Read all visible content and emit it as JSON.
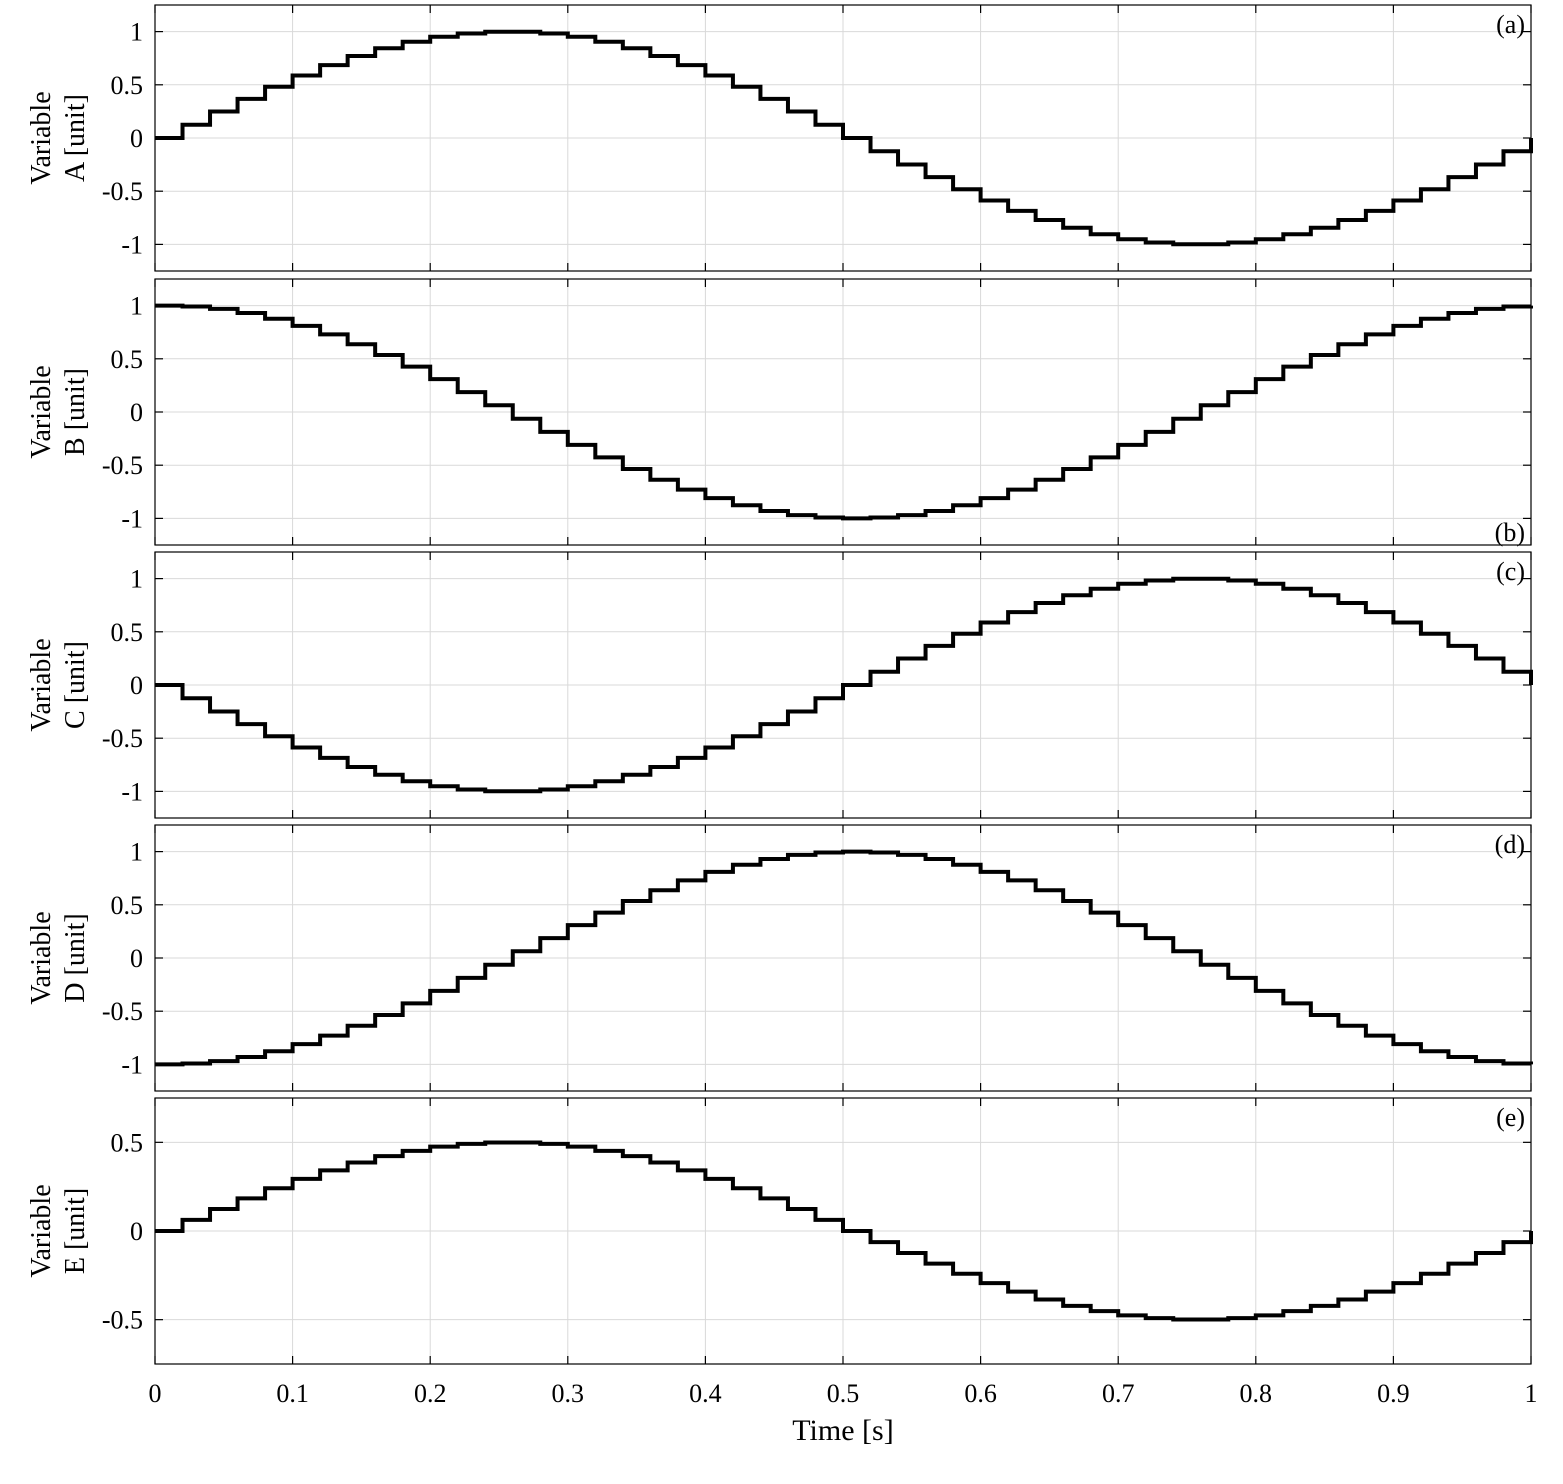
{
  "chart_data": {
    "type": "line",
    "step": true,
    "xlabel": "Time [s]",
    "xlim": [
      0,
      1
    ],
    "xticks": [
      0,
      0.1,
      0.2,
      0.3,
      0.4,
      0.5,
      0.6,
      0.7,
      0.8,
      0.9,
      1
    ],
    "xtick_labels": [
      "0",
      "0.1",
      "0.2",
      "0.3",
      "0.4",
      "0.5",
      "0.6",
      "0.7",
      "0.8",
      "0.9",
      "1"
    ],
    "grid": true,
    "sample_step": 0.02,
    "panels": [
      {
        "tag": "(a)",
        "tag_position": "top-right",
        "ylabel_line1": "Variable",
        "ylabel_line2": "A [unit]",
        "ylim": [
          -1.25,
          1.25
        ],
        "yticks": [
          1,
          0.5,
          0,
          -0.5,
          -1
        ],
        "ytick_labels": [
          "1",
          "0.5",
          "0",
          "-0.5",
          "-1"
        ],
        "values": [
          0.0,
          0.125,
          0.249,
          0.368,
          0.482,
          0.588,
          0.685,
          0.771,
          0.844,
          0.905,
          0.951,
          0.982,
          0.998,
          0.998,
          0.982,
          0.951,
          0.905,
          0.844,
          0.771,
          0.685,
          0.588,
          0.482,
          0.368,
          0.249,
          0.125,
          0.0,
          -0.125,
          -0.249,
          -0.368,
          -0.482,
          -0.588,
          -0.685,
          -0.771,
          -0.844,
          -0.905,
          -0.951,
          -0.982,
          -0.998,
          -0.998,
          -0.982,
          -0.951,
          -0.905,
          -0.844,
          -0.771,
          -0.685,
          -0.588,
          -0.482,
          -0.368,
          -0.249,
          -0.125,
          0.0
        ]
      },
      {
        "tag": "(b)",
        "tag_position": "bottom-right",
        "ylabel_line1": "Variable",
        "ylabel_line2": "B [unit]",
        "ylim": [
          -1.25,
          1.25
        ],
        "yticks": [
          1,
          0.5,
          0,
          -0.5,
          -1
        ],
        "ytick_labels": [
          "1",
          "0.5",
          "0",
          "-0.5",
          "-1"
        ],
        "values": [
          1.0,
          0.992,
          0.969,
          0.93,
          0.876,
          0.809,
          0.729,
          0.637,
          0.536,
          0.426,
          0.309,
          0.187,
          0.063,
          -0.063,
          -0.187,
          -0.309,
          -0.426,
          -0.536,
          -0.637,
          -0.729,
          -0.809,
          -0.876,
          -0.93,
          -0.969,
          -0.992,
          -1.0,
          -0.992,
          -0.969,
          -0.93,
          -0.876,
          -0.809,
          -0.729,
          -0.637,
          -0.536,
          -0.426,
          -0.309,
          -0.187,
          -0.063,
          0.063,
          0.187,
          0.309,
          0.426,
          0.536,
          0.637,
          0.729,
          0.809,
          0.876,
          0.93,
          0.969,
          0.992,
          1.0
        ]
      },
      {
        "tag": "(c)",
        "tag_position": "top-right",
        "ylabel_line1": "Variable",
        "ylabel_line2": "C [unit]",
        "ylim": [
          -1.25,
          1.25
        ],
        "yticks": [
          1,
          0.5,
          0,
          -0.5,
          -1
        ],
        "ytick_labels": [
          "1",
          "0.5",
          "0",
          "-0.5",
          "-1"
        ],
        "values": [
          0.0,
          -0.125,
          -0.249,
          -0.368,
          -0.482,
          -0.588,
          -0.685,
          -0.771,
          -0.844,
          -0.905,
          -0.951,
          -0.982,
          -0.998,
          -0.998,
          -0.982,
          -0.951,
          -0.905,
          -0.844,
          -0.771,
          -0.685,
          -0.588,
          -0.482,
          -0.368,
          -0.249,
          -0.125,
          0.0,
          0.125,
          0.249,
          0.368,
          0.482,
          0.588,
          0.685,
          0.771,
          0.844,
          0.905,
          0.951,
          0.982,
          0.998,
          0.998,
          0.982,
          0.951,
          0.905,
          0.844,
          0.771,
          0.685,
          0.588,
          0.482,
          0.368,
          0.249,
          0.125,
          0.0
        ]
      },
      {
        "tag": "(d)",
        "tag_position": "top-right",
        "ylabel_line1": "Variable",
        "ylabel_line2": "D [unit]",
        "ylim": [
          -1.25,
          1.25
        ],
        "yticks": [
          1,
          0.5,
          0,
          -0.5,
          -1
        ],
        "ytick_labels": [
          "1",
          "0.5",
          "0",
          "-0.5",
          "-1"
        ],
        "values": [
          -1.0,
          -0.992,
          -0.969,
          -0.93,
          -0.876,
          -0.809,
          -0.729,
          -0.637,
          -0.536,
          -0.426,
          -0.309,
          -0.187,
          -0.063,
          0.063,
          0.187,
          0.309,
          0.426,
          0.536,
          0.637,
          0.729,
          0.809,
          0.876,
          0.93,
          0.969,
          0.992,
          1.0,
          0.992,
          0.969,
          0.93,
          0.876,
          0.809,
          0.729,
          0.637,
          0.536,
          0.426,
          0.309,
          0.187,
          0.063,
          -0.063,
          -0.187,
          -0.309,
          -0.426,
          -0.536,
          -0.637,
          -0.729,
          -0.809,
          -0.876,
          -0.93,
          -0.969,
          -0.992,
          -1.0
        ]
      },
      {
        "tag": "(e)",
        "tag_position": "top-right",
        "ylabel_line1": "Variable",
        "ylabel_line2": "E [unit]",
        "ylim": [
          -0.75,
          0.75
        ],
        "yticks": [
          0.5,
          0,
          -0.5
        ],
        "ytick_labels": [
          "0.5",
          "0",
          "-0.5"
        ],
        "values": [
          0.0,
          0.063,
          0.124,
          0.184,
          0.241,
          0.294,
          0.342,
          0.386,
          0.422,
          0.452,
          0.476,
          0.491,
          0.499,
          0.499,
          0.491,
          0.476,
          0.452,
          0.422,
          0.386,
          0.342,
          0.294,
          0.241,
          0.184,
          0.124,
          0.063,
          0.0,
          -0.063,
          -0.124,
          -0.184,
          -0.241,
          -0.294,
          -0.342,
          -0.386,
          -0.422,
          -0.452,
          -0.476,
          -0.491,
          -0.499,
          -0.499,
          -0.491,
          -0.476,
          -0.452,
          -0.422,
          -0.386,
          -0.342,
          -0.294,
          -0.241,
          -0.184,
          -0.124,
          -0.063,
          0.0
        ]
      }
    ]
  }
}
